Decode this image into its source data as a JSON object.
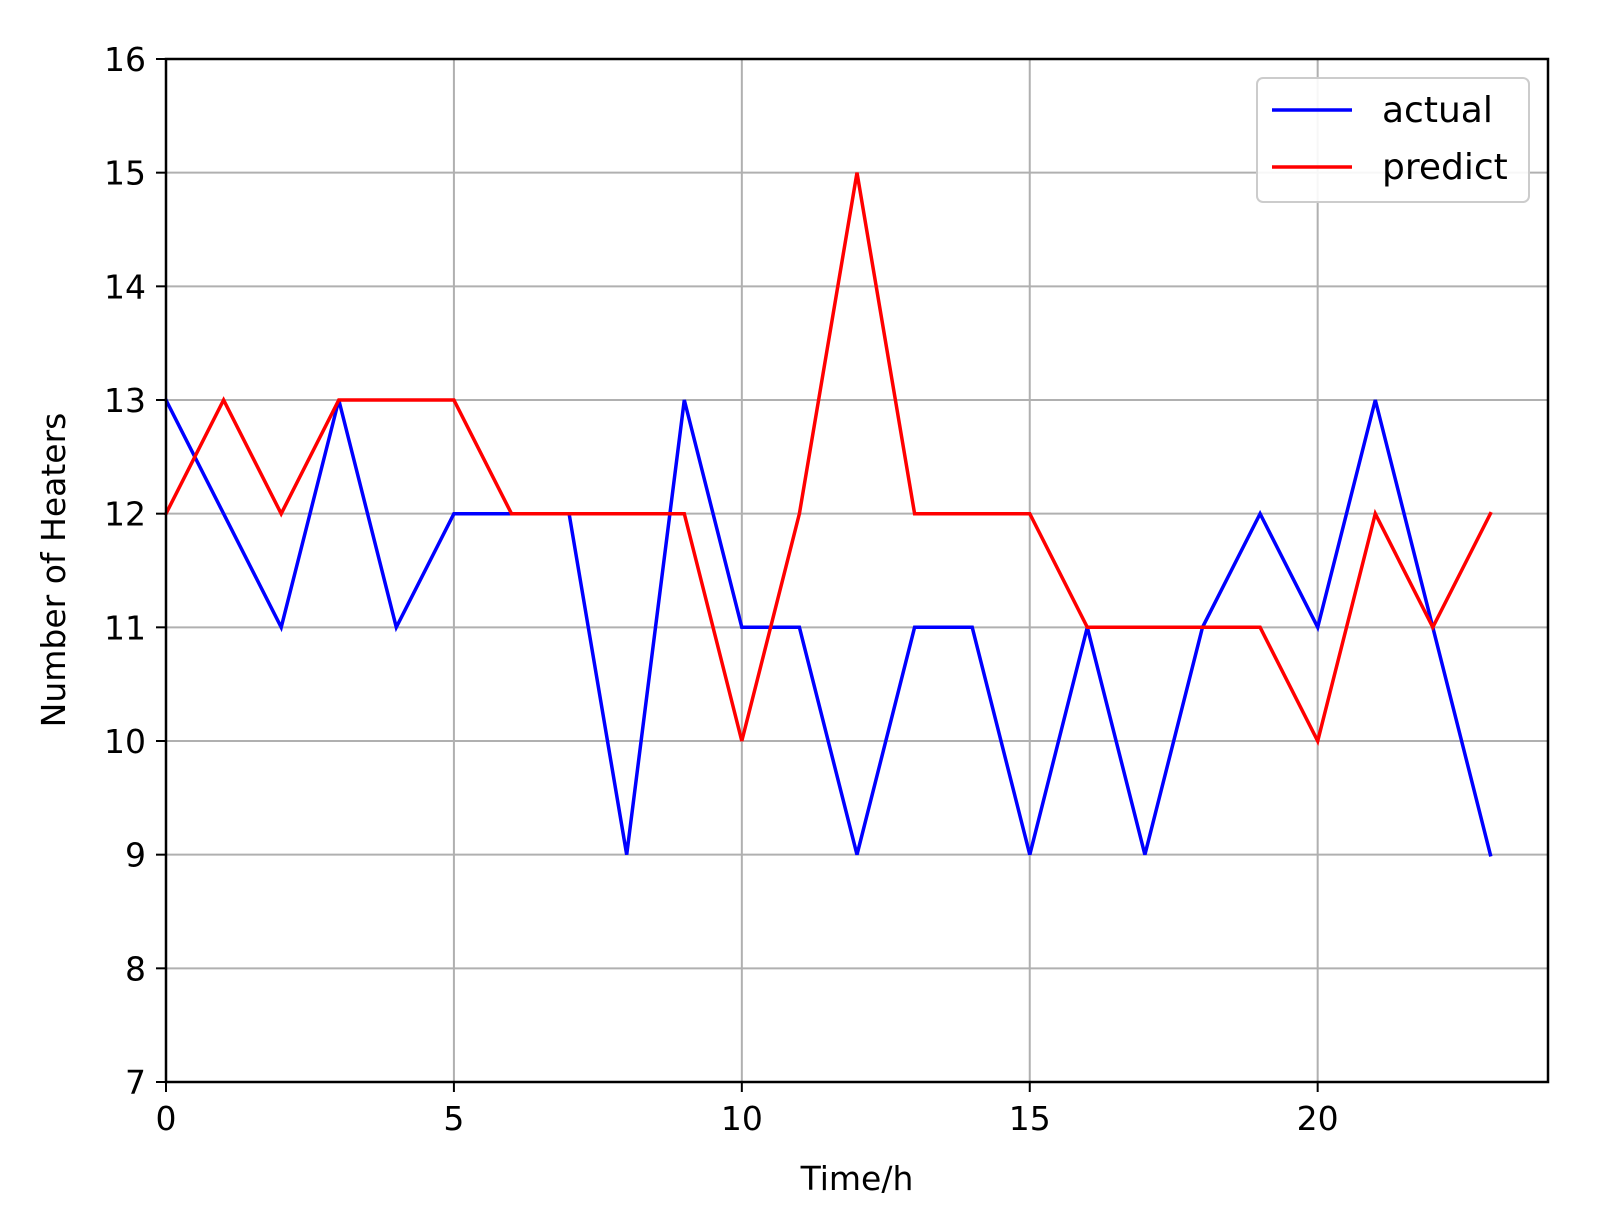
{
  "chart_data": {
    "type": "line",
    "title": "",
    "xlabel": "Time/h",
    "ylabel": "Number of Heaters",
    "xlim": [
      0,
      24
    ],
    "ylim": [
      7,
      16
    ],
    "xticks": [
      0,
      5,
      10,
      15,
      20
    ],
    "yticks": [
      7,
      8,
      9,
      10,
      11,
      12,
      13,
      14,
      15,
      16
    ],
    "grid": true,
    "legend_position": "top-right",
    "x": [
      0,
      1,
      2,
      3,
      4,
      5,
      6,
      7,
      8,
      9,
      10,
      11,
      12,
      13,
      14,
      15,
      16,
      17,
      18,
      19,
      20,
      21,
      22,
      23
    ],
    "series": [
      {
        "name": "actual",
        "color": "#0000ff",
        "values": [
          13,
          12,
          11,
          13,
          11,
          12,
          12,
          12,
          9,
          13,
          11,
          11,
          9,
          11,
          11,
          9,
          11,
          9,
          11,
          12,
          11,
          13,
          11,
          9
        ]
      },
      {
        "name": "predict",
        "color": "#ff0000",
        "values": [
          12,
          13,
          12,
          13,
          13,
          13,
          12,
          12,
          12,
          12,
          10,
          12,
          15,
          12,
          12,
          12,
          11,
          11,
          11,
          11,
          10,
          12,
          11,
          12
        ]
      }
    ]
  }
}
